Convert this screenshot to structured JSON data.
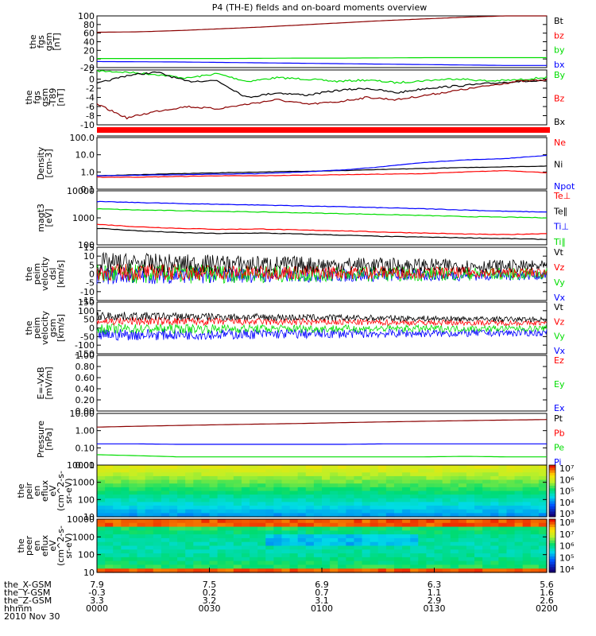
{
  "title": "P4 (TH-E) fields and on-board moments overview",
  "colors": {
    "black": "#000000",
    "red": "#ff0000",
    "green": "#00dd00",
    "blue": "#0000ff",
    "darkred": "#8b0000"
  },
  "chart_data": [
    {
      "type": "line",
      "panel": "fgs_gsm",
      "ylabel": [
        "the",
        "fgs",
        "gsm",
        "[nT]"
      ],
      "ylim": [
        -20,
        100
      ],
      "yticks": [
        100,
        80,
        60,
        40,
        20,
        0,
        -20
      ],
      "legend": [
        {
          "label": "Bt",
          "color": "#000000"
        },
        {
          "label": "bz",
          "color": "#ff0000"
        },
        {
          "label": "by",
          "color": "#00dd00"
        },
        {
          "label": "bx",
          "color": "#0000ff"
        }
      ],
      "series": [
        {
          "color": "#8b0000",
          "values": [
            62,
            63,
            66,
            70,
            74,
            79,
            84,
            89,
            93,
            97,
            100,
            103
          ]
        },
        {
          "color": "#00dd00",
          "values": [
            1,
            1,
            1,
            1,
            1.5,
            2,
            2,
            2.5,
            3,
            3,
            3,
            3
          ]
        },
        {
          "color": "#0000ff",
          "values": [
            -6,
            -6.5,
            -7,
            -8,
            -9,
            -10,
            -11,
            -12,
            -13,
            -14,
            -15,
            -15
          ]
        }
      ]
    },
    {
      "type": "line",
      "panel": "fgs_gsm_dt",
      "ylabel": [
        "the",
        "fgs",
        "gsm",
        "-T89",
        "[nT]"
      ],
      "ylim": [
        -10,
        2
      ],
      "yticks": [
        2,
        0,
        -2,
        -4,
        -6,
        -8,
        -10
      ],
      "legend": [
        {
          "label": "By",
          "color": "#00dd00"
        },
        {
          "label": "Bz",
          "color": "#ff0000"
        },
        {
          "label": "Bx",
          "color": "#000000"
        }
      ],
      "series": [
        {
          "color": "#00dd00",
          "values": [
            1.8,
            1.5,
            1.0,
            0.2,
            1.2,
            -0.5,
            0.3,
            0,
            -0.5,
            -0.2,
            -0.8,
            -0.3,
            0.1,
            -0.4,
            -0.2,
            0.4
          ]
        },
        {
          "color": "#000000",
          "values": [
            -1.0,
            0.8,
            1.5,
            -0.5,
            -0.3,
            -4.0,
            -3.0,
            -3.5,
            -2.5,
            -2.0,
            -3.0,
            -2.0,
            -1.5,
            -1.0,
            -0.5,
            -0.5
          ]
        },
        {
          "color": "#8b0000",
          "values": [
            -5.5,
            -8.5,
            -7.0,
            -6.0,
            -6.5,
            -5.5,
            -4.5,
            -5.5,
            -5.0,
            -4.0,
            -4.5,
            -3.5,
            -2.5,
            -1.5,
            -0.5,
            -0.2
          ]
        }
      ]
    },
    {
      "type": "line",
      "panel": "density",
      "ylabel": [
        "Density",
        "[cm-3]"
      ],
      "ylog": true,
      "ylim": [
        0.1,
        100
      ],
      "ytick_labels": [
        "100.0",
        "10.0",
        "1.0",
        "0.1"
      ],
      "legend": [
        {
          "label": "Ne",
          "color": "#ff0000"
        },
        {
          "label": "Ni",
          "color": "#000000"
        },
        {
          "label": "Npot",
          "color": "#0000ff"
        }
      ],
      "series": [
        {
          "color": "#000000",
          "values": [
            0.6,
            0.7,
            0.8,
            0.9,
            1.0,
            1.1,
            1.2,
            1.4,
            1.6,
            1.8,
            2.0,
            2.2
          ]
        },
        {
          "color": "#0000ff",
          "values": [
            0.6,
            0.65,
            0.7,
            0.75,
            0.8,
            1.0,
            1.3,
            2.0,
            3.5,
            5.0,
            6.0,
            9.0
          ]
        },
        {
          "color": "#ff0000",
          "values": [
            0.5,
            0.5,
            0.55,
            0.6,
            0.6,
            0.65,
            0.7,
            0.75,
            0.8,
            1.0,
            1.2,
            0.9
          ]
        }
      ]
    },
    {
      "type": "line",
      "panel": "temperature",
      "ylabel": [
        "magt3",
        "[eV]"
      ],
      "ylog": true,
      "ylim": [
        80,
        10000
      ],
      "ytick_labels": [
        "10000",
        "1000",
        "100"
      ],
      "legend": [
        {
          "label": "Te⊥",
          "color": "#ff0000"
        },
        {
          "label": "Te∥",
          "color": "#000000"
        },
        {
          "label": "Ti⊥",
          "color": "#0000ff"
        },
        {
          "label": "Ti∥",
          "color": "#00dd00"
        }
      ],
      "series": [
        {
          "color": "#0000ff",
          "values": [
            3800,
            3500,
            3200,
            3000,
            2800,
            2600,
            2400,
            2200,
            2000,
            1800,
            1600,
            1500
          ]
        },
        {
          "color": "#00dd00",
          "values": [
            2000,
            1800,
            1700,
            1600,
            1500,
            1400,
            1300,
            1200,
            1100,
            1000,
            950,
            900
          ]
        },
        {
          "color": "#ff0000",
          "values": [
            500,
            400,
            350,
            320,
            330,
            300,
            280,
            250,
            230,
            210,
            200,
            220
          ]
        },
        {
          "color": "#000000",
          "values": [
            350,
            280,
            240,
            220,
            230,
            210,
            190,
            170,
            160,
            150,
            140,
            130
          ]
        }
      ]
    },
    {
      "type": "line",
      "panel": "peim_velocity_dsl",
      "ylabel": [
        "the",
        "peim",
        "velocity",
        "dsl",
        "[km/s]"
      ],
      "ylim": [
        -15,
        15
      ],
      "yticks": [
        15,
        10,
        5,
        0,
        -5,
        -10,
        -15
      ],
      "legend": [
        {
          "label": "Vt",
          "color": "#000000"
        },
        {
          "label": "Vz",
          "color": "#ff0000"
        },
        {
          "label": "Vy",
          "color": "#00dd00"
        },
        {
          "label": "Vx",
          "color": "#0000ff"
        }
      ]
    },
    {
      "type": "line",
      "panel": "peim_velocity_gsm",
      "ylabel": [
        "the",
        "peim",
        "velocity",
        "gsm",
        "[km/s]"
      ],
      "ylim": [
        -150,
        150
      ],
      "yticks": [
        150,
        100,
        50,
        0,
        -50,
        -100,
        -150
      ],
      "legend": [
        {
          "label": "Vt",
          "color": "#000000"
        },
        {
          "label": "Vz",
          "color": "#ff0000"
        },
        {
          "label": "Vy",
          "color": "#00dd00"
        },
        {
          "label": "Vx",
          "color": "#0000ff"
        }
      ]
    },
    {
      "type": "line",
      "panel": "e_field",
      "ylabel": [
        "E=-VxB",
        "[mV/m]"
      ],
      "ylim": [
        0,
        1
      ],
      "ytick_labels": [
        "1.00",
        "0.80",
        "0.60",
        "0.40",
        "0.20",
        "0.00"
      ],
      "legend": [
        {
          "label": "Ez",
          "color": "#ff0000"
        },
        {
          "label": "Ey",
          "color": "#00dd00"
        },
        {
          "label": "Ex",
          "color": "#0000ff"
        }
      ]
    },
    {
      "type": "line",
      "panel": "pressure",
      "ylabel": [
        "Pressure",
        "[nPa]"
      ],
      "ylog": true,
      "ylim": [
        0.01,
        10
      ],
      "ytick_labels": [
        "10.00",
        "1.00",
        "0.10",
        "0.01"
      ],
      "legend": [
        {
          "label": "Pt",
          "color": "#000000"
        },
        {
          "label": "Pb",
          "color": "#ff0000"
        },
        {
          "label": "Pe",
          "color": "#00dd00"
        },
        {
          "label": "Pi",
          "color": "#0000ff"
        }
      ],
      "series": [
        {
          "color": "#8b0000",
          "values": [
            1.6,
            1.8,
            2.0,
            2.2,
            2.4,
            2.6,
            2.9,
            3.2,
            3.5,
            3.8,
            4.1,
            4.4
          ]
        },
        {
          "color": "#0000ff",
          "values": [
            0.17,
            0.17,
            0.16,
            0.16,
            0.16,
            0.16,
            0.16,
            0.17,
            0.17,
            0.17,
            0.17,
            0.17
          ]
        },
        {
          "color": "#00dd00",
          "values": [
            0.04,
            0.035,
            0.03,
            0.03,
            0.03,
            0.03,
            0.03,
            0.03,
            0.03,
            0.032,
            0.03,
            0.03
          ]
        }
      ]
    },
    {
      "type": "heatmap",
      "panel": "ion_eflux",
      "ylabel": [
        "the",
        "peir",
        "en",
        "eflux",
        "eV",
        "(cm^2-s-",
        "sr-eV)"
      ],
      "ylog": true,
      "ytick_labels": [
        "10000",
        "1000",
        "100",
        "10"
      ],
      "colorbar_labels": [
        "10⁷",
        "10⁶",
        "10⁵",
        "10⁴",
        "10³"
      ]
    },
    {
      "type": "heatmap",
      "panel": "electron_eflux",
      "ylabel": [
        "the",
        "peer",
        "en",
        "eflux",
        "eV",
        "(cm^2-s-",
        "sr-eV)"
      ],
      "ylog": true,
      "ytick_labels": [
        "10000",
        "1000",
        "100",
        "10"
      ],
      "colorbar_labels": [
        "10⁸",
        "10⁷",
        "10⁶",
        "10⁵",
        "10⁴"
      ]
    }
  ],
  "xaxis": {
    "rows": [
      {
        "label": "the_X-GSM",
        "values": [
          "7.9",
          "7.5",
          "6.9",
          "6.3",
          "5.6"
        ]
      },
      {
        "label": "the_Y-GSM",
        "values": [
          "-0.3",
          "0.2",
          "0.7",
          "1.1",
          "1.6"
        ]
      },
      {
        "label": "the_Z-GSM",
        "values": [
          "3.3",
          "3.2",
          "3.1",
          "2.9",
          "2.6"
        ]
      },
      {
        "label": "hhmm",
        "values": [
          "0000",
          "0030",
          "0100",
          "0130",
          "0200"
        ]
      }
    ],
    "date": "2010 Nov 30"
  }
}
